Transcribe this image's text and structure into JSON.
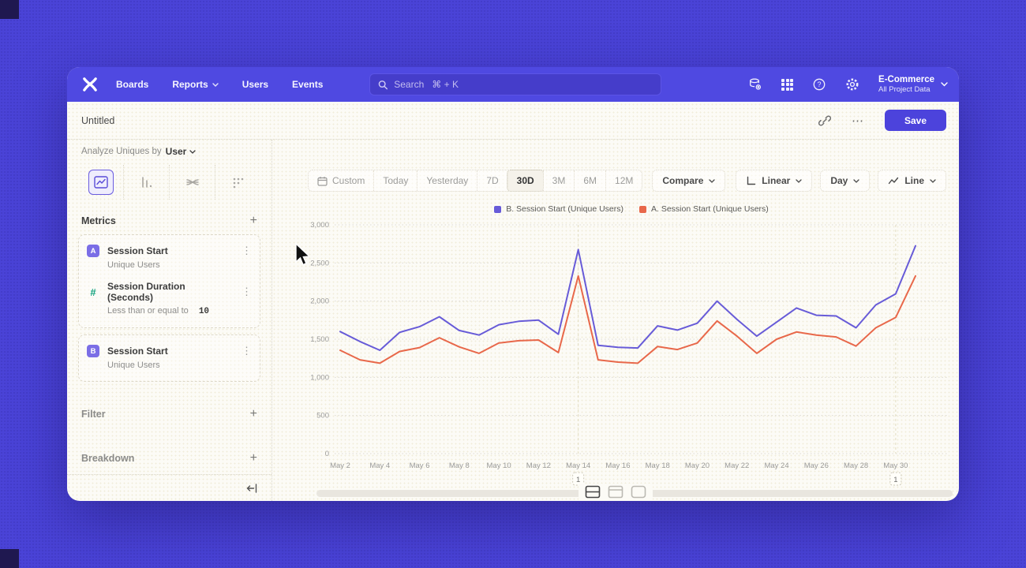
{
  "nav": {
    "menu": [
      "Boards",
      "Reports",
      "Users",
      "Events"
    ],
    "search_placeholder": "Search   ⌘ + K",
    "project_name": "E-Commerce",
    "project_subtitle": "All Project Data"
  },
  "titlebar": {
    "title": "Untitled",
    "more_label": "⋯",
    "save_label": "Save"
  },
  "sidebar": {
    "analyze_prefix": "Analyze Uniques by",
    "analyze_value": "User",
    "metrics_header": "Metrics",
    "filter_header": "Filter",
    "breakdown_header": "Breakdown",
    "metric_a": {
      "badge": "A",
      "title": "Session Start",
      "subtitle": "Unique Users"
    },
    "metric_a_filter": {
      "badge": "#",
      "title": "Session Duration (Seconds)",
      "condition": "Less than or equal to",
      "condition_value": "10"
    },
    "metric_b": {
      "badge": "B",
      "title": "Session Start",
      "subtitle": "Unique Users"
    }
  },
  "controls": {
    "ranges": [
      "Custom",
      "Today",
      "Yesterday",
      "7D",
      "30D",
      "3M",
      "6M",
      "12M"
    ],
    "active_range": "30D",
    "compare_label": "Compare",
    "scale_label": "Linear",
    "interval_label": "Day",
    "chart_type_label": "Line"
  },
  "chart_data": {
    "type": "line",
    "title": "",
    "xlabel": "",
    "ylabel": "",
    "ylim": [
      0,
      3000
    ],
    "yticks": [
      0,
      500,
      1000,
      1500,
      2000,
      2500,
      3000
    ],
    "grid": "horizontal-dotted",
    "legend_position": "top-center",
    "x": [
      "May 2",
      "May 3",
      "May 4",
      "May 5",
      "May 6",
      "May 7",
      "May 8",
      "May 9",
      "May 10",
      "May 11",
      "May 12",
      "May 13",
      "May 14",
      "May 15",
      "May 16",
      "May 17",
      "May 18",
      "May 19",
      "May 20",
      "May 21",
      "May 22",
      "May 23",
      "May 24",
      "May 25",
      "May 26",
      "May 27",
      "May 28",
      "May 29",
      "May 30",
      "May 31"
    ],
    "x_tick_every": 2,
    "series": [
      {
        "name": "B. Session Start (Unique Users)",
        "color": "#675bd8",
        "values": [
          1600,
          1470,
          1355,
          1590,
          1665,
          1795,
          1615,
          1555,
          1690,
          1735,
          1750,
          1565,
          2675,
          1420,
          1395,
          1385,
          1675,
          1620,
          1710,
          2000,
          1760,
          1540,
          1725,
          1910,
          1815,
          1805,
          1650,
          1950,
          2095,
          2725
        ]
      },
      {
        "name": "A. Session Start (Unique Users)",
        "color": "#e8684a",
        "values": [
          1355,
          1230,
          1185,
          1340,
          1390,
          1520,
          1400,
          1315,
          1450,
          1480,
          1490,
          1325,
          2330,
          1230,
          1200,
          1185,
          1405,
          1365,
          1450,
          1740,
          1540,
          1315,
          1500,
          1595,
          1555,
          1530,
          1410,
          1650,
          1785,
          2330
        ]
      }
    ],
    "annotations": [
      {
        "x": "May 14",
        "label": "1"
      },
      {
        "x": "May 30",
        "label": "1"
      }
    ]
  }
}
